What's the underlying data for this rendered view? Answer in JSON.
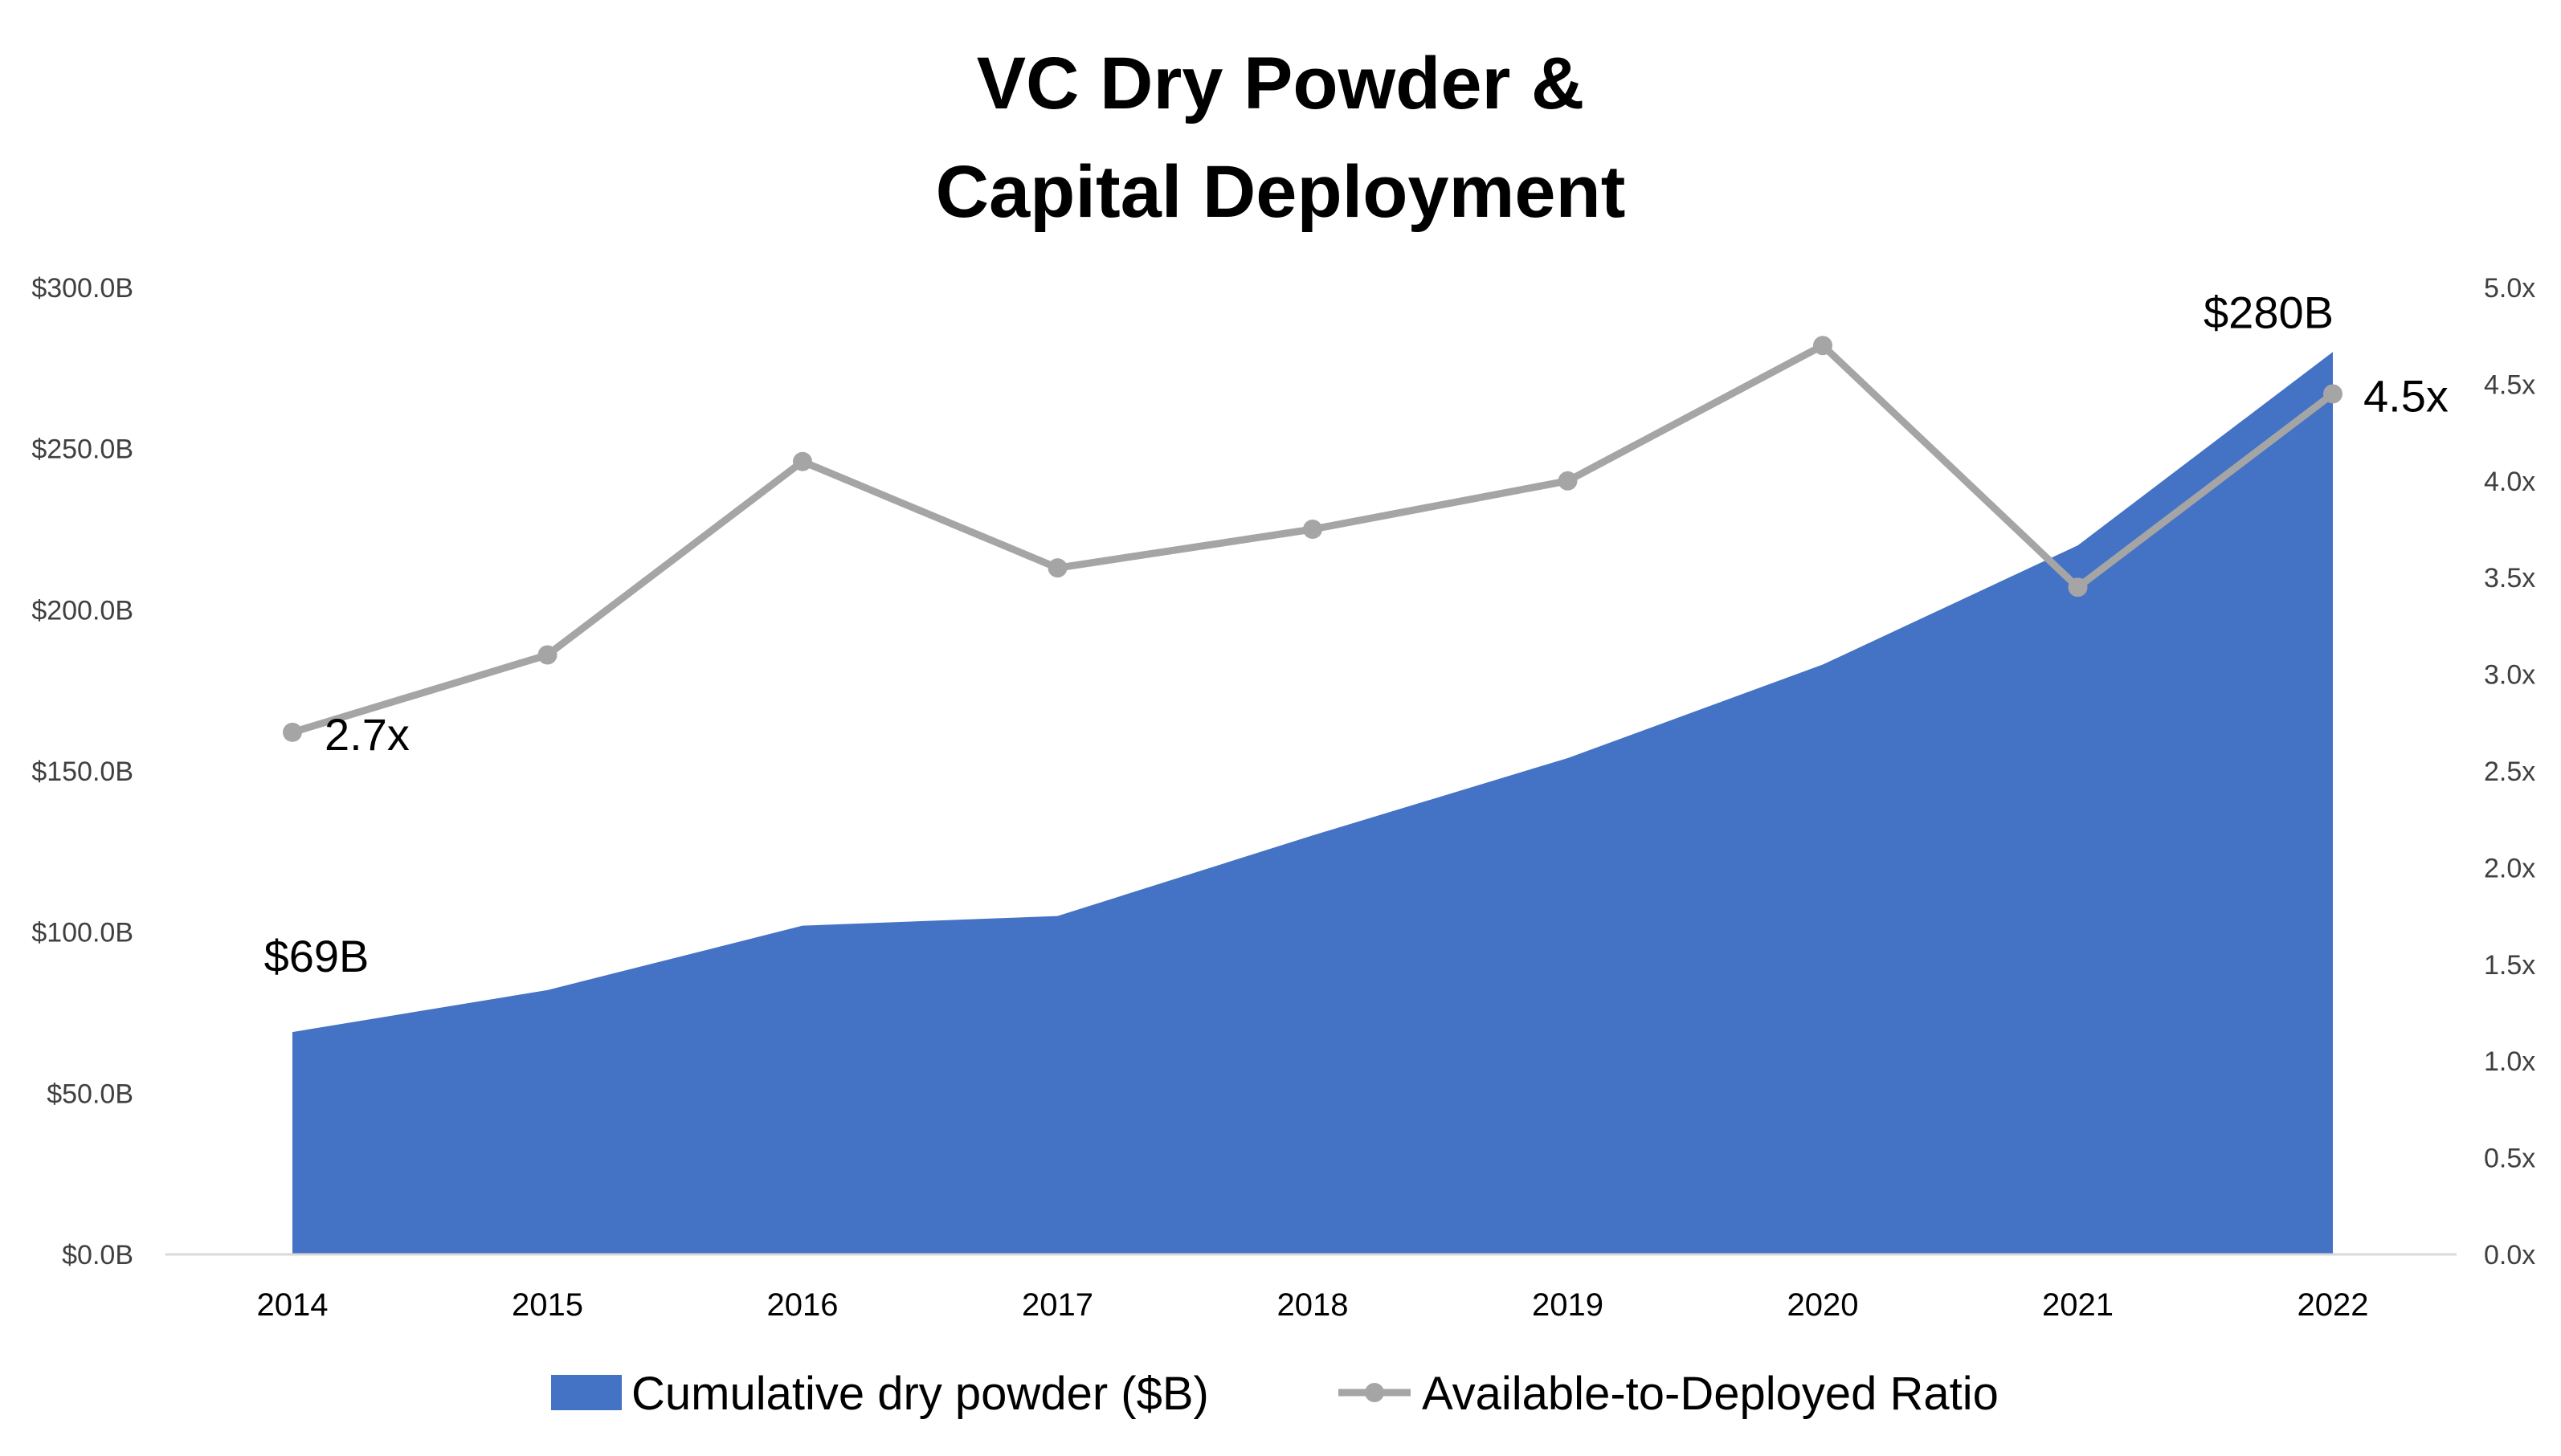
{
  "chart_data": {
    "type": "area",
    "title": "VC Dry Powder & Capital Deployment",
    "title_lines": [
      "VC Dry Powder &",
      "Capital Deployment"
    ],
    "x": [
      "2014",
      "2015",
      "2016",
      "2017",
      "2018",
      "2019",
      "2020",
      "2021",
      "2022"
    ],
    "left_axis": {
      "ylim": [
        0,
        300
      ],
      "ticks": [
        0,
        50,
        100,
        150,
        200,
        250,
        300
      ],
      "tick_labels": [
        "$0.0B",
        "$50.0B",
        "$100.0B",
        "$150.0B",
        "$200.0B",
        "$250.0B",
        "$300.0B"
      ]
    },
    "right_axis": {
      "ylim": [
        0,
        5
      ],
      "ticks": [
        0,
        0.5,
        1,
        1.5,
        2,
        2.5,
        3,
        3.5,
        4,
        4.5,
        5
      ],
      "tick_labels": [
        "0.0x",
        "0.5x",
        "1.0x",
        "1.5x",
        "2.0x",
        "2.5x",
        "3.0x",
        "3.5x",
        "4.0x",
        "4.5x",
        "5.0x"
      ]
    },
    "series": [
      {
        "name": "Cumulative dry powder ($B)",
        "type": "area",
        "axis": "left",
        "color": "#4472C4",
        "values": [
          69,
          82,
          102,
          105,
          130,
          154,
          183,
          220,
          280
        ]
      },
      {
        "name": "Available-to-Deployed Ratio",
        "type": "line",
        "axis": "right",
        "color": "#A5A5A5",
        "values": [
          2.7,
          3.1,
          4.1,
          3.55,
          3.75,
          4.0,
          4.7,
          3.45,
          4.45
        ]
      }
    ],
    "annotations": [
      {
        "text": "$69B",
        "series": 0,
        "index": 0
      },
      {
        "text": "$280B",
        "series": 0,
        "index": 8
      },
      {
        "text": "2.7x",
        "series": 1,
        "index": 0
      },
      {
        "text": "4.5x",
        "series": 1,
        "index": 8
      }
    ],
    "grid": false,
    "legend_position": "bottom"
  }
}
